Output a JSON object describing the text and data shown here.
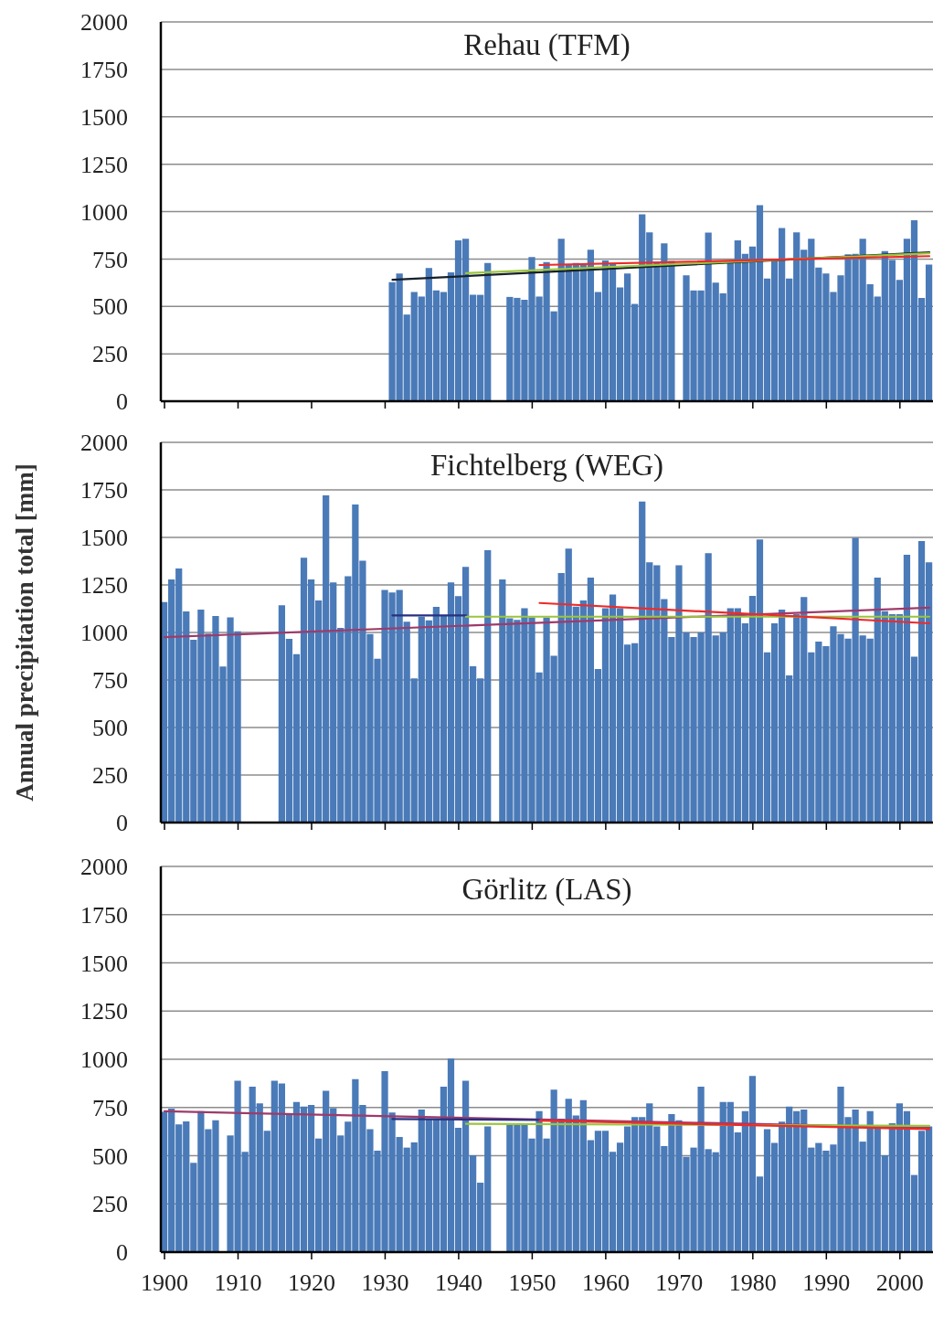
{
  "chart_data": [
    {
      "type": "bar",
      "title": "Rehau (TFM)",
      "x": [
        1931,
        1932,
        1933,
        1934,
        1935,
        1936,
        1937,
        1938,
        1939,
        1940,
        1941,
        1942,
        1943,
        1944,
        1945,
        1946,
        1947,
        1948,
        1949,
        1950,
        1951,
        1952,
        1953,
        1954,
        1955,
        1956,
        1957,
        1958,
        1959,
        1960,
        1961,
        1962,
        1963,
        1964,
        1965,
        1966,
        1967,
        1968,
        1969,
        1970,
        1971,
        1972,
        1973,
        1974,
        1975,
        1976,
        1977,
        1978,
        1979,
        1980,
        1981,
        1982,
        1983,
        1984,
        1985,
        1986,
        1987,
        1988,
        1989,
        1990,
        1991,
        1992,
        1993,
        1994,
        1995,
        1996,
        1997,
        1998,
        1999,
        2000,
        2001,
        2002,
        2003,
        2004
      ],
      "xlim": [
        1899.5,
        2004.5
      ],
      "xticks": [
        1900,
        1910,
        1920,
        1930,
        1940,
        1950,
        1960,
        1970,
        1980,
        1990,
        2000
      ],
      "ylim": [
        0,
        2000
      ],
      "yticks": [
        0,
        250,
        500,
        750,
        1000,
        1250,
        1500,
        1750,
        2000
      ],
      "grid": "y",
      "tick_labels": "y",
      "series": [
        {
          "color": "#4a7ab8",
          "values": [
            628,
            673,
            457,
            576,
            552,
            703,
            584,
            576,
            680,
            848,
            857,
            561,
            561,
            729,
            null,
            null,
            550,
            545,
            535,
            760,
            552,
            734,
            474,
            857,
            718,
            729,
            721,
            799,
            576,
            742,
            729,
            600,
            673,
            513,
            985,
            890,
            734,
            833,
            740,
            null,
            664,
            584,
            584,
            889,
            625,
            569,
            740,
            848,
            777,
            816,
            1034,
            647,
            744,
            913,
            647,
            890,
            799,
            857,
            705,
            673,
            576,
            664,
            775,
            777,
            857,
            617,
            552,
            792,
            744,
            640,
            857,
            954,
            545,
            720
          ]
        },
        {
          "type": "line",
          "color": "#17202a",
          "x": [
            1931,
            2004
          ],
          "values": [
            640,
            785
          ]
        },
        {
          "type": "line",
          "color": "#9bc53d",
          "x": [
            1941,
            2004
          ],
          "values": [
            675,
            780
          ]
        },
        {
          "type": "line",
          "color": "#ee2a2a",
          "x": [
            1951,
            2004
          ],
          "values": [
            718,
            765
          ]
        }
      ]
    },
    {
      "type": "bar",
      "title": "Fichtelberg (WEG)",
      "ylabel": "Annual precipitation total [mm]",
      "x": [
        1900,
        1901,
        1902,
        1903,
        1904,
        1905,
        1906,
        1907,
        1908,
        1909,
        1910,
        1911,
        1912,
        1913,
        1914,
        1915,
        1916,
        1917,
        1918,
        1919,
        1920,
        1921,
        1922,
        1923,
        1924,
        1925,
        1926,
        1927,
        1928,
        1929,
        1930,
        1931,
        1932,
        1933,
        1934,
        1935,
        1936,
        1937,
        1938,
        1939,
        1940,
        1941,
        1942,
        1943,
        1944,
        1945,
        1946,
        1947,
        1948,
        1949,
        1950,
        1951,
        1952,
        1953,
        1954,
        1955,
        1956,
        1957,
        1958,
        1959,
        1960,
        1961,
        1962,
        1963,
        1964,
        1965,
        1966,
        1967,
        1968,
        1969,
        1970,
        1971,
        1972,
        1973,
        1974,
        1975,
        1976,
        1977,
        1978,
        1979,
        1980,
        1981,
        1982,
        1983,
        1984,
        1985,
        1986,
        1987,
        1988,
        1989,
        1990,
        1991,
        1992,
        1993,
        1994,
        1995,
        1996,
        1997,
        1998,
        1999,
        2000,
        2001,
        2002,
        2003,
        2004
      ],
      "xlim": [
        1899.5,
        2004.5
      ],
      "xticks": [
        1900,
        1910,
        1920,
        1930,
        1940,
        1950,
        1960,
        1970,
        1980,
        1990,
        2000
      ],
      "ylim": [
        0,
        2000
      ],
      "yticks": [
        0,
        250,
        500,
        750,
        1000,
        1250,
        1500,
        1750,
        2000
      ],
      "grid": "y",
      "tick_labels": "y",
      "series": [
        {
          "color": "#4a7ab8",
          "values": [
            1160,
            1279,
            1337,
            1111,
            962,
            1120,
            994,
            1087,
            821,
            1079,
            1006,
            null,
            null,
            null,
            null,
            null,
            1143,
            966,
            886,
            1393,
            1279,
            1168,
            1721,
            1263,
            1024,
            1296,
            1673,
            1377,
            992,
            862,
            1223,
            1210,
            1223,
            1056,
            758,
            1083,
            1064,
            1135,
            1090,
            1263,
            1191,
            1345,
            822,
            758,
            1433,
            null,
            1279,
            1074,
            1066,
            1127,
            1079,
            790,
            1078,
            878,
            1312,
            1441,
            1136,
            1168,
            1288,
            808,
            1127,
            1200,
            1127,
            936,
            944,
            1689,
            1369,
            1353,
            1176,
            976,
            1353,
            1000,
            976,
            1000,
            1417,
            984,
            1000,
            1128,
            1128,
            1048,
            1192,
            1489,
            896,
            1048,
            1120,
            774,
            1096,
            1186,
            896,
            952,
            928,
            1032,
            992,
            968,
            1497,
            984,
            968,
            1288,
            1112,
            1096,
            1096,
            1409,
            872,
            1481,
            1369
          ]
        },
        {
          "type": "line",
          "color": "#9e3a6a",
          "x": [
            1900,
            2004
          ],
          "values": [
            975,
            1130
          ]
        },
        {
          "type": "line",
          "color": "#283080",
          "x": [
            1931,
            1941
          ],
          "values": [
            1090,
            1090
          ]
        },
        {
          "type": "line",
          "color": "#9bc53d",
          "x": [
            1941,
            2004
          ],
          "values": [
            1083,
            1083
          ]
        },
        {
          "type": "line",
          "color": "#ee2a2a",
          "x": [
            1951,
            2004
          ],
          "values": [
            1155,
            1048
          ]
        }
      ]
    },
    {
      "type": "bar",
      "title": "Görlitz (LAS)",
      "x": [
        1900,
        1901,
        1902,
        1903,
        1904,
        1905,
        1906,
        1907,
        1908,
        1909,
        1910,
        1911,
        1912,
        1913,
        1914,
        1915,
        1916,
        1917,
        1918,
        1919,
        1920,
        1921,
        1922,
        1923,
        1924,
        1925,
        1926,
        1927,
        1928,
        1929,
        1930,
        1931,
        1932,
        1933,
        1934,
        1935,
        1936,
        1937,
        1938,
        1939,
        1940,
        1941,
        1942,
        1943,
        1944,
        1945,
        1946,
        1947,
        1948,
        1949,
        1950,
        1951,
        1952,
        1953,
        1954,
        1955,
        1956,
        1957,
        1958,
        1959,
        1960,
        1961,
        1962,
        1963,
        1964,
        1965,
        1966,
        1967,
        1968,
        1969,
        1970,
        1971,
        1972,
        1973,
        1974,
        1975,
        1976,
        1977,
        1978,
        1979,
        1980,
        1981,
        1982,
        1983,
        1984,
        1985,
        1986,
        1987,
        1988,
        1989,
        1990,
        1991,
        1992,
        1993,
        1994,
        1995,
        1996,
        1997,
        1998,
        1999,
        2000,
        2001,
        2002,
        2003,
        2004
      ],
      "xlim": [
        1899.5,
        2004.5
      ],
      "xticks": [
        1900,
        1910,
        1920,
        1930,
        1940,
        1950,
        1960,
        1970,
        1980,
        1990,
        2000
      ],
      "ylim": [
        0,
        2000
      ],
      "yticks": [
        0,
        250,
        500,
        750,
        1000,
        1250,
        1500,
        1750,
        2000
      ],
      "grid": "y",
      "series": [
        {
          "color": "#4a7ab8",
          "values": [
            728,
            744,
            662,
            678,
            463,
            731,
            638,
            684,
            null,
            605,
            889,
            520,
            858,
            771,
            629,
            889,
            874,
            719,
            779,
            755,
            763,
            589,
            836,
            747,
            605,
            676,
            897,
            763,
            637,
            526,
            938,
            724,
            597,
            542,
            569,
            739,
            687,
            687,
            858,
            1003,
            645,
            889,
            502,
            360,
            652,
            null,
            null,
            660,
            660,
            660,
            589,
            731,
            589,
            842,
            692,
            795,
            708,
            788,
            581,
            629,
            629,
            520,
            567,
            652,
            700,
            700,
            771,
            652,
            550,
            716,
            684,
            494,
            542,
            858,
            534,
            518,
            779,
            779,
            621,
            731,
            913,
            392,
            637,
            566,
            676,
            755,
            731,
            739,
            542,
            566,
            526,
            558,
            858,
            700,
            739,
            573,
            731,
            652,
            502,
            668,
            771,
            731,
            400,
            629,
            652
          ]
        },
        {
          "type": "line",
          "color": "#9e3a6a",
          "x": [
            1900,
            2004
          ],
          "values": [
            730,
            645
          ]
        },
        {
          "type": "line",
          "color": "#283080",
          "x": [
            1931,
            1951
          ],
          "values": [
            690,
            685
          ]
        },
        {
          "type": "line",
          "color": "#9bc53d",
          "x": [
            1941,
            2004
          ],
          "values": [
            665,
            655
          ]
        },
        {
          "type": "line",
          "color": "#ee2a2a",
          "x": [
            1951,
            2004
          ],
          "values": [
            682,
            638
          ]
        }
      ]
    }
  ]
}
